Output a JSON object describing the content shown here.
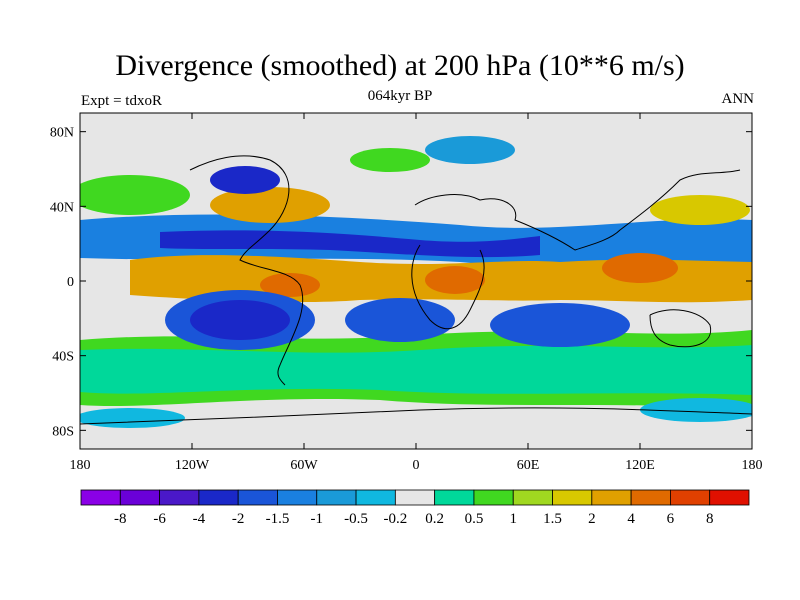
{
  "title": "Divergence (smoothed) at 200 hPa (10**6 m/s)",
  "subtitle": "064kyr BP",
  "left_label": "Expt = tdxoR",
  "right_label": "ANN",
  "map": {
    "projection": "cylindrical equidistant",
    "lon_range": [
      -180,
      180
    ],
    "lat_range": [
      -90,
      90
    ],
    "lat_ticks": [
      {
        "value": 80,
        "label": "80N"
      },
      {
        "value": 40,
        "label": "40N"
      },
      {
        "value": 0,
        "label": "0"
      },
      {
        "value": -40,
        "label": "40S"
      },
      {
        "value": -80,
        "label": "80S"
      }
    ],
    "lon_ticks": [
      {
        "value": -180,
        "label": "180"
      },
      {
        "value": -120,
        "label": "120W"
      },
      {
        "value": -60,
        "label": "60W"
      },
      {
        "value": 0,
        "label": "0"
      },
      {
        "value": 60,
        "label": "60E"
      },
      {
        "value": 120,
        "label": "120E"
      },
      {
        "value": 180,
        "label": "180"
      }
    ]
  },
  "colorbar": {
    "colors": [
      "#8a00e6",
      "#6a00d8",
      "#4a18c8",
      "#1a28c8",
      "#1a55d8",
      "#1a80e0",
      "#1a9ad8",
      "#10b8e0",
      "#e6e6e6",
      "#00d89a",
      "#40d820",
      "#a0d820",
      "#d8c800",
      "#e0a000",
      "#e06a00",
      "#e04000",
      "#e01000"
    ],
    "labels": [
      "-8",
      "-6",
      "-4",
      "-2",
      "-1.5",
      "-1",
      "-0.5",
      "-0.2",
      "0.2",
      "0.5",
      "1",
      "1.5",
      "2",
      "4",
      "6",
      "8"
    ]
  }
}
